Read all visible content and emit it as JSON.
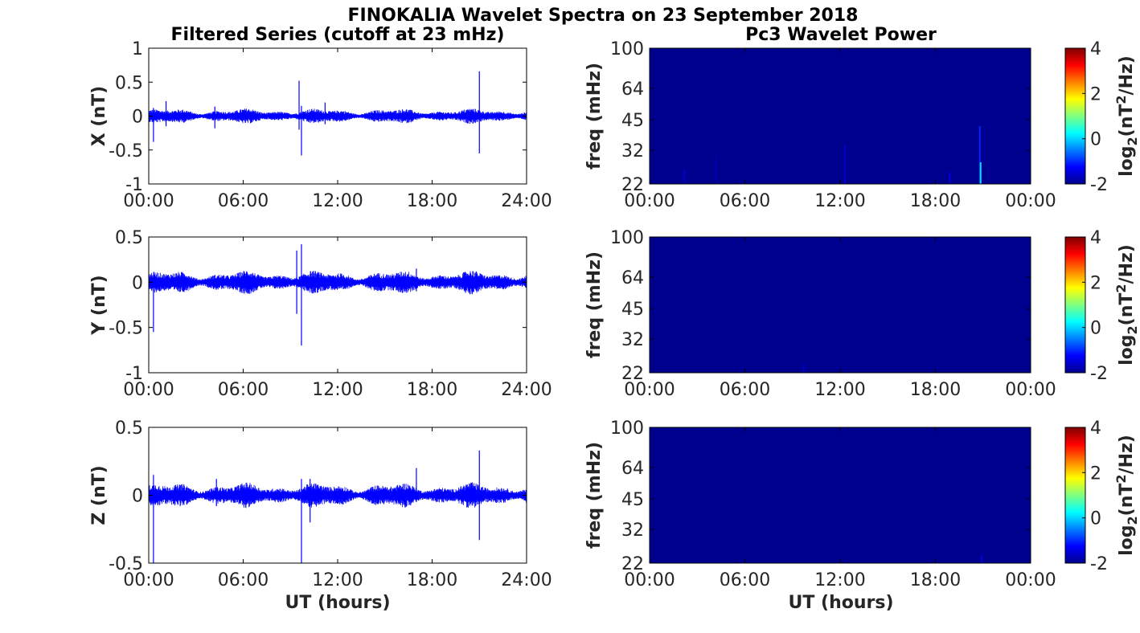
{
  "figure": {
    "title": "FINOKALIA Wavelet Spectra on 23 September 2018",
    "left_column_title": "Filtered Series (cutoff at 23 mHz)",
    "right_column_title": "Pc3 Wavelet Power",
    "xlabel": "UT (hours)"
  },
  "colors": {
    "series_line": "#0000ff",
    "spectrogram_background": "#00008f",
    "axes": "#000000"
  },
  "chart_data": [
    {
      "type": "line",
      "panel": "X",
      "ylabel": "X (nT)",
      "ylim": [
        -1,
        1
      ],
      "yticks": [
        "1",
        "0.5",
        "0",
        "-0.5",
        "-1"
      ],
      "xticks": [
        "00:00",
        "06:00",
        "12:00",
        "18:00",
        "24:00"
      ],
      "xlim_hours": [
        0,
        24
      ],
      "noise_amplitude": 0.06,
      "baseline": 0.0,
      "grid": false,
      "spikes": [
        {
          "x": 0.3,
          "min": -0.38,
          "max": 0.12
        },
        {
          "x": 1.1,
          "min": -0.15,
          "max": 0.22
        },
        {
          "x": 9.55,
          "min": -0.2,
          "max": 0.52
        },
        {
          "x": 9.7,
          "min": -0.58,
          "max": 0.15
        },
        {
          "x": 21.0,
          "min": -0.55,
          "max": 0.66
        },
        {
          "x": 11.2,
          "min": -0.12,
          "max": 0.2
        },
        {
          "x": 4.2,
          "min": -0.18,
          "max": 0.14
        }
      ]
    },
    {
      "type": "line",
      "panel": "Y",
      "ylabel": "Y (nT)",
      "ylim": [
        -1,
        0.5
      ],
      "yticks": [
        "0.5",
        "0",
        "-0.5",
        "-1"
      ],
      "xticks": [
        "00:00",
        "06:00",
        "12:00",
        "18:00",
        "24:00"
      ],
      "xlim_hours": [
        0,
        24
      ],
      "noise_amplitude": 0.07,
      "baseline": 0.0,
      "grid": false,
      "spikes": [
        {
          "x": 0.3,
          "min": -0.55,
          "max": 0.08
        },
        {
          "x": 9.4,
          "min": -0.35,
          "max": 0.35
        },
        {
          "x": 9.7,
          "min": -0.7,
          "max": 0.42
        },
        {
          "x": 17.0,
          "min": -0.1,
          "max": 0.15
        },
        {
          "x": 20.6,
          "min": -0.1,
          "max": 0.12
        }
      ]
    },
    {
      "type": "line",
      "panel": "Z",
      "ylabel": "Z (nT)",
      "ylim": [
        -0.5,
        0.5
      ],
      "yticks": [
        "0.5",
        "0",
        "-0.5"
      ],
      "xticks": [
        "00:00",
        "06:00",
        "12:00",
        "18:00",
        "24:00"
      ],
      "xlim_hours": [
        0,
        24
      ],
      "noise_amplitude": 0.05,
      "baseline": 0.0,
      "grid": false,
      "spikes": [
        {
          "x": 0.3,
          "min": -0.5,
          "max": 0.15
        },
        {
          "x": 4.3,
          "min": -0.08,
          "max": 0.12
        },
        {
          "x": 9.7,
          "min": -0.5,
          "max": 0.12
        },
        {
          "x": 10.25,
          "min": -0.2,
          "max": 0.12
        },
        {
          "x": 17.0,
          "min": -0.05,
          "max": 0.2
        },
        {
          "x": 21.0,
          "min": -0.33,
          "max": 0.33
        }
      ]
    },
    {
      "type": "heatmap",
      "panel": "X-power",
      "ylabel": "freq (mHz)",
      "yticks": [
        "100",
        "64",
        "45",
        "32",
        "22"
      ],
      "ylim_mHz": [
        22,
        100
      ],
      "yscale": "log",
      "xticks": [
        "00:00",
        "06:00",
        "12:00",
        "18:00",
        "00:00"
      ],
      "xlim_hours": [
        0,
        24
      ],
      "colorbar_label": "log2(nT2/Hz)",
      "colorbar_ticks": [
        "4",
        "2",
        "0",
        "-2"
      ],
      "clim": [
        -2,
        4
      ],
      "colormap": "jet",
      "background_value": -2,
      "streaks": [
        {
          "x": 2.2,
          "fmin": 22,
          "fmax": 26,
          "value": -1.5
        },
        {
          "x": 4.2,
          "fmin": 22,
          "fmax": 30,
          "value": -1.7
        },
        {
          "x": 12.3,
          "fmin": 22,
          "fmax": 34,
          "value": -1.5
        },
        {
          "x": 18.9,
          "fmin": 22,
          "fmax": 25,
          "value": -1.4
        },
        {
          "x": 20.8,
          "fmin": 22,
          "fmax": 42,
          "value": -1.0
        },
        {
          "x": 20.85,
          "fmin": 22,
          "fmax": 28,
          "value": 0.2
        }
      ]
    },
    {
      "type": "heatmap",
      "panel": "Y-power",
      "ylabel": "freq (mHz)",
      "yticks": [
        "100",
        "64",
        "45",
        "32",
        "22"
      ],
      "ylim_mHz": [
        22,
        100
      ],
      "yscale": "log",
      "xticks": [
        "00:00",
        "06:00",
        "12:00",
        "18:00",
        "00:00"
      ],
      "xlim_hours": [
        0,
        24
      ],
      "colorbar_label": "log2(nT2/Hz)",
      "colorbar_ticks": [
        "4",
        "2",
        "0",
        "-2"
      ],
      "clim": [
        -2,
        4
      ],
      "colormap": "jet",
      "background_value": -2,
      "streaks": [
        {
          "x": 9.7,
          "fmin": 22,
          "fmax": 24,
          "value": -1.5
        }
      ]
    },
    {
      "type": "heatmap",
      "panel": "Z-power",
      "ylabel": "freq (mHz)",
      "yticks": [
        "100",
        "64",
        "45",
        "32",
        "22"
      ],
      "ylim_mHz": [
        22,
        100
      ],
      "yscale": "log",
      "xticks": [
        "00:00",
        "06:00",
        "12:00",
        "18:00",
        "00:00"
      ],
      "xlim_hours": [
        0,
        24
      ],
      "colorbar_label": "log2(nT2/Hz)",
      "colorbar_ticks": [
        "4",
        "2",
        "0",
        "-2"
      ],
      "clim": [
        -2,
        4
      ],
      "colormap": "jet",
      "background_value": -2,
      "streaks": [
        {
          "x": 20.9,
          "fmin": 22,
          "fmax": 24,
          "value": -1.4
        }
      ]
    }
  ]
}
